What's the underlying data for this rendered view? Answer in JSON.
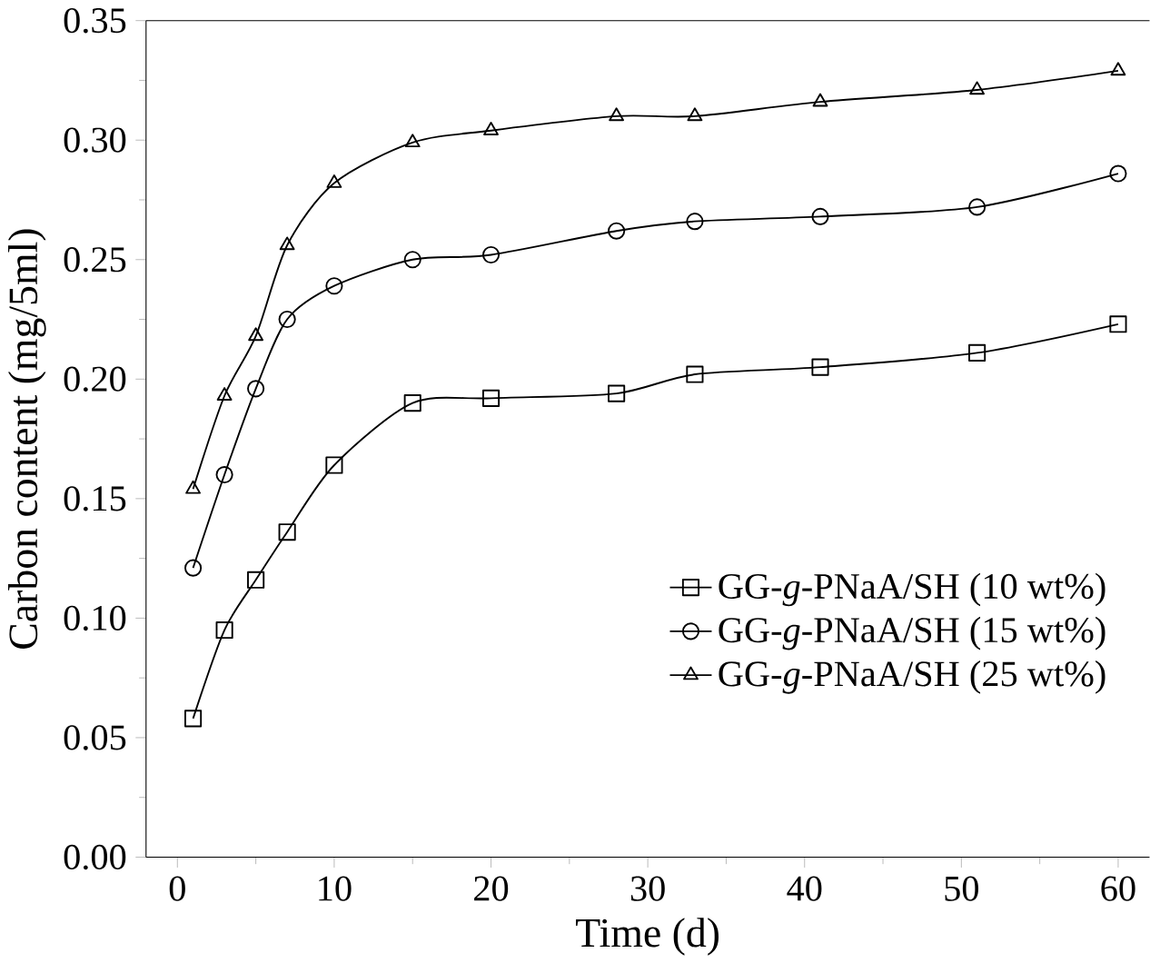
{
  "chart_data": {
    "type": "line",
    "xlabel": "Time (d)",
    "ylabel": "Carbon content (mg/5ml)",
    "x": [
      1,
      3,
      5,
      7,
      10,
      15,
      20,
      28,
      33,
      41,
      51,
      60
    ],
    "series": [
      {
        "name": "GG-*g*-PNaA/SH (10 wt%)",
        "color": "#000000",
        "marker": "square",
        "values": [
          0.058,
          0.095,
          0.116,
          0.136,
          0.164,
          0.19,
          0.192,
          0.194,
          0.202,
          0.205,
          0.211,
          0.223
        ]
      },
      {
        "name": "GG-*g*-PNaA/SH (15 wt%)",
        "color": "#000000",
        "marker": "circle",
        "values": [
          0.121,
          0.16,
          0.196,
          0.225,
          0.239,
          0.25,
          0.252,
          0.262,
          0.266,
          0.268,
          0.272,
          0.286
        ]
      },
      {
        "name": "GG-*g*-PNaA/SH (25 wt%)",
        "color": "#000000",
        "marker": "triangle",
        "values": [
          0.154,
          0.193,
          0.218,
          0.256,
          0.282,
          0.299,
          0.304,
          0.31,
          0.31,
          0.316,
          0.321,
          0.329
        ]
      }
    ],
    "xlim": [
      -2,
      62
    ],
    "xticks": [
      0,
      10,
      20,
      30,
      40,
      50,
      60
    ],
    "ylim": [
      0,
      0.35
    ],
    "yticks": [
      {
        "value": 0,
        "label": "0.00"
      },
      {
        "value": 0.05,
        "label": "0.05"
      },
      {
        "value": 0.1,
        "label": "0.10"
      },
      {
        "value": 0.15,
        "label": "0.15"
      },
      {
        "value": 0.2,
        "label": "0.20"
      },
      {
        "value": 0.25,
        "label": "0.25"
      },
      {
        "value": 0.3,
        "label": "0.30"
      },
      {
        "value": 0.35,
        "label": "0.35"
      }
    ],
    "grid": false,
    "legend": "right",
    "line_style": "solid"
  }
}
